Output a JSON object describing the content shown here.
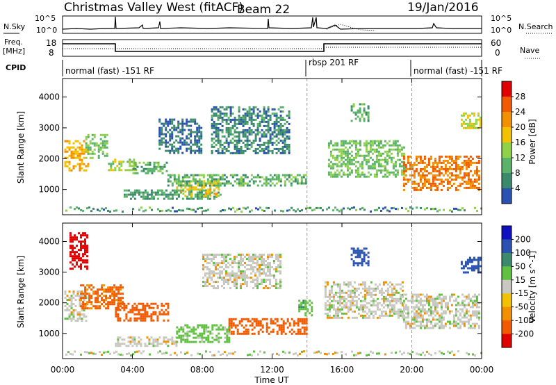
{
  "header": {
    "title": "Christmas Valley West (fitACF)",
    "beam": "Beam 22",
    "date": "19/Jan/2016"
  },
  "strips": {
    "nsky_label": "N.Sky",
    "nsearch_label": "N.Search",
    "freq_label_1": "Freq.",
    "freq_label_2": "[MHz]",
    "nave_label": "Nave",
    "cpid_label": "CPID",
    "nsky_ticks": [
      "10^5",
      "10^0"
    ],
    "freq_ticks": [
      "18",
      "8"
    ],
    "nave_ticks": [
      "60",
      "0"
    ],
    "cpid_segments": [
      {
        "start_h": 0,
        "end_h": 14,
        "label": "normal (fast) -151 RF"
      },
      {
        "start_h": 14,
        "end_h": 20,
        "label": "rbsp 201 RF"
      },
      {
        "start_h": 20,
        "end_h": 24,
        "label": "normal (fast) -151 RF"
      }
    ]
  },
  "colors": {
    "power_scale": [
      "#0000e0",
      "#2a52b0",
      "#3c8a6e",
      "#5bb36a",
      "#8fd24a",
      "#f2c200",
      "#f29000",
      "#f25a00",
      "#e00000"
    ],
    "velocity_scale": [
      "#e00000",
      "#f25a00",
      "#f29000",
      "#f2c200",
      "#c8c8c0",
      "#c8c8c0",
      "#60c040",
      "#3c8a6e",
      "#2a52b0",
      "#1010c0"
    ],
    "frame": "#000000",
    "divider": "#999999"
  },
  "xaxis": {
    "label": "Time UT",
    "ticks": [
      "00:00",
      "04:00",
      "08:00",
      "12:00",
      "16:00",
      "20:00",
      "00:00"
    ]
  },
  "chart_data": [
    {
      "type": "heatmap",
      "name": "Power",
      "ylabel": "Slant Range [km]",
      "colorbar_label": "Power [dB]",
      "colorbar_ticks": [
        "4",
        "8",
        "12",
        "16",
        "20",
        "24",
        "28"
      ],
      "xlim_h": [
        0,
        24
      ],
      "ylim_km": [
        180,
        4600
      ],
      "yticks": [
        "1000",
        "2000",
        "3000",
        "4000"
      ],
      "regions": [
        {
          "t0": 0.1,
          "t1": 1.5,
          "r0": 1650,
          "r1": 2600,
          "value_db": 22
        },
        {
          "t0": 1.3,
          "t1": 2.6,
          "r0": 2000,
          "r1": 2800,
          "value_db": 14
        },
        {
          "t0": 2.6,
          "t1": 4.2,
          "r0": 1600,
          "r1": 2000,
          "value_db": 16
        },
        {
          "t0": 4.0,
          "t1": 6.0,
          "r0": 1500,
          "r1": 1900,
          "value_db": 12
        },
        {
          "t0": 3.5,
          "t1": 9.0,
          "r0": 700,
          "r1": 1000,
          "value_db": 10
        },
        {
          "t0": 6.5,
          "t1": 9.0,
          "r0": 800,
          "r1": 1300,
          "value_db": 20
        },
        {
          "t0": 6.0,
          "t1": 14.0,
          "r0": 1100,
          "r1": 1500,
          "value_db": 12
        },
        {
          "t0": 8.5,
          "t1": 13.0,
          "r0": 2200,
          "r1": 3700,
          "value_db": 8
        },
        {
          "t0": 5.5,
          "t1": 8.0,
          "r0": 2200,
          "r1": 3300,
          "value_db": 6
        },
        {
          "t0": 15.2,
          "t1": 19.5,
          "r0": 1400,
          "r1": 2600,
          "value_db": 14
        },
        {
          "t0": 19.5,
          "t1": 23.9,
          "r0": 1000,
          "r1": 2100,
          "value_db": 26
        },
        {
          "t0": 22.8,
          "t1": 23.9,
          "r0": 3000,
          "r1": 3500,
          "value_db": 18
        },
        {
          "t0": 16.5,
          "t1": 17.5,
          "r0": 3200,
          "r1": 3800,
          "value_db": 12
        }
      ]
    },
    {
      "type": "heatmap",
      "name": "Velocity",
      "ylabel": "Slant Range [km]",
      "colorbar_label": "Velocity [m s^-1]",
      "colorbar_ticks": [
        "-200",
        "-100",
        "-50",
        "-15",
        "15",
        "50",
        "100",
        "200"
      ],
      "xlim_h": [
        0,
        24
      ],
      "ylim_km": [
        180,
        4600
      ],
      "yticks": [
        "1000",
        "2000",
        "3000",
        "4000"
      ],
      "regions": [
        {
          "t0": 0.1,
          "t1": 1.3,
          "r0": 1400,
          "r1": 2400,
          "value_ms": 0
        },
        {
          "t0": 0.4,
          "t1": 1.4,
          "r0": 3100,
          "r1": 4300,
          "value_ms": -220
        },
        {
          "t0": 1.0,
          "t1": 3.5,
          "r0": 1800,
          "r1": 2600,
          "value_ms": -60
        },
        {
          "t0": 3.0,
          "t1": 6.0,
          "r0": 1400,
          "r1": 2000,
          "value_ms": -80
        },
        {
          "t0": 3.0,
          "t1": 6.5,
          "r0": 600,
          "r1": 900,
          "value_ms": 0
        },
        {
          "t0": 6.5,
          "t1": 9.5,
          "r0": 700,
          "r1": 1300,
          "value_ms": 30
        },
        {
          "t0": 9.5,
          "t1": 14.0,
          "r0": 1000,
          "r1": 1500,
          "value_ms": -70
        },
        {
          "t0": 8.0,
          "t1": 12.5,
          "r0": 2500,
          "r1": 3600,
          "value_ms": 0
        },
        {
          "t0": 13.5,
          "t1": 14.3,
          "r0": 1600,
          "r1": 2100,
          "value_ms": 40
        },
        {
          "t0": 15.0,
          "t1": 19.5,
          "r0": 1500,
          "r1": 2700,
          "value_ms": 0
        },
        {
          "t0": 19.5,
          "t1": 23.9,
          "r0": 1200,
          "r1": 2300,
          "value_ms": 0
        },
        {
          "t0": 22.8,
          "t1": 23.9,
          "r0": 3000,
          "r1": 3500,
          "value_ms": 120
        },
        {
          "t0": 16.5,
          "t1": 17.5,
          "r0": 3200,
          "r1": 3800,
          "value_ms": 150
        }
      ]
    }
  ]
}
